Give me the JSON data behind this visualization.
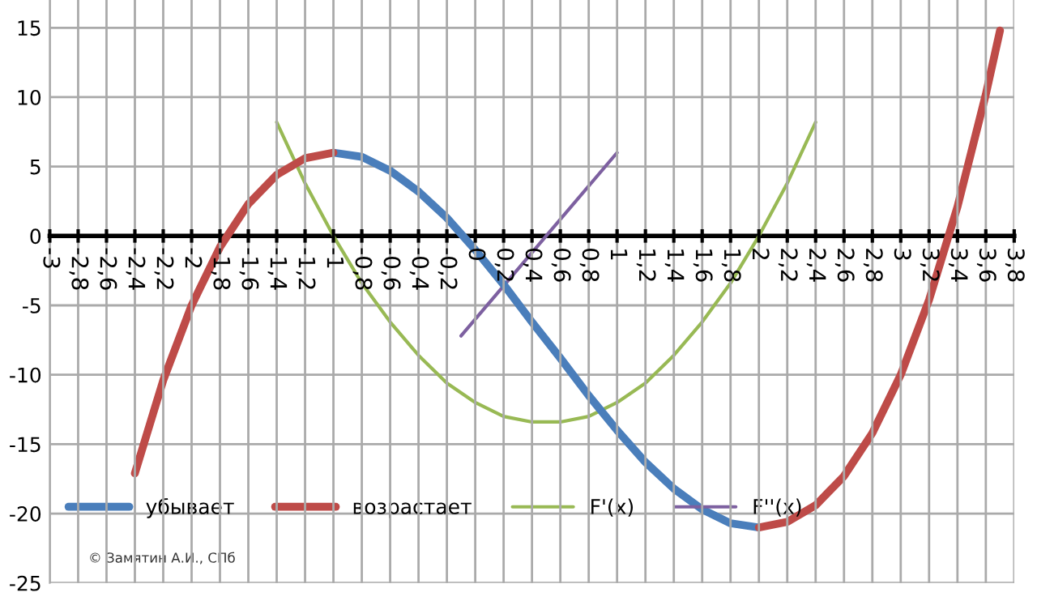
{
  "chart_data": {
    "type": "line",
    "xlim": [
      -3,
      3.8
    ],
    "xticks": [
      {
        "value": -3,
        "label": "-3"
      },
      {
        "value": -2.8,
        "label": "-2,8"
      },
      {
        "value": -2.6,
        "label": "-2,6"
      },
      {
        "value": -2.4,
        "label": "-2,4"
      },
      {
        "value": -2.2,
        "label": "-2,2"
      },
      {
        "value": -2,
        "label": "-2"
      },
      {
        "value": -1.8,
        "label": "-1,8"
      },
      {
        "value": -1.6,
        "label": "-1,6"
      },
      {
        "value": -1.4,
        "label": "-1,4"
      },
      {
        "value": -1.2,
        "label": "-1,2"
      },
      {
        "value": -1,
        "label": "-1"
      },
      {
        "value": -0.8,
        "label": "-0,8"
      },
      {
        "value": -0.6,
        "label": "-0,6"
      },
      {
        "value": -0.4,
        "label": "-0,4"
      },
      {
        "value": -0.2,
        "label": "-0,2"
      },
      {
        "value": 0,
        "label": "0"
      },
      {
        "value": 0.2,
        "label": "0,2"
      },
      {
        "value": 0.4,
        "label": "0,4"
      },
      {
        "value": 0.6,
        "label": "0,6"
      },
      {
        "value": 0.8,
        "label": "0,8"
      },
      {
        "value": 1,
        "label": "1"
      },
      {
        "value": 1.2,
        "label": "1,2"
      },
      {
        "value": 1.4,
        "label": "1,4"
      },
      {
        "value": 1.6,
        "label": "1,6"
      },
      {
        "value": 1.8,
        "label": "1,8"
      },
      {
        "value": 2,
        "label": "2"
      },
      {
        "value": 2.2,
        "label": "2,2"
      },
      {
        "value": 2.4,
        "label": "2,4"
      },
      {
        "value": 2.6,
        "label": "2,6"
      },
      {
        "value": 2.8,
        "label": "2,8"
      },
      {
        "value": 3,
        "label": "3"
      },
      {
        "value": 3.2,
        "label": "3,2"
      },
      {
        "value": 3.4,
        "label": "3,4"
      },
      {
        "value": 3.6,
        "label": "3,6"
      },
      {
        "value": 3.8,
        "label": "3,8"
      }
    ],
    "ylim": [
      -25,
      17
    ],
    "yticks": [
      -25,
      -20,
      -15,
      -10,
      -5,
      0,
      5,
      10,
      15
    ],
    "grid": true,
    "legend": "bottom",
    "marker": "none",
    "series": [
      {
        "name": "убывает",
        "color": "#4a7ebb",
        "x": [
          -1.0,
          -0.8,
          -0.6,
          -0.4,
          -0.2,
          0,
          0.2,
          0.4,
          0.6,
          0.8,
          1.0,
          1.2,
          1.4,
          1.6,
          1.8,
          2.0
        ],
        "values": [
          6,
          5.7,
          4.7,
          3.2,
          1.3,
          -1,
          -3.5,
          -6.2,
          -8.8,
          -11.5,
          -14,
          -16.3,
          -18.2,
          -19.7,
          -20.7,
          -21
        ]
      },
      {
        "name": "возрастает",
        "color": "#be4b48",
        "x": [
          -2.4,
          -2.2,
          -2.0,
          -1.8,
          -1.6,
          -1.4,
          -1.2,
          -1.0,
          0.5,
          2.0,
          2.2,
          2.4,
          2.6,
          2.8,
          3.0,
          3.2,
          3.4,
          3.6,
          3.7
        ],
        "values": [
          -17.1,
          -10.4,
          -5,
          -0.8,
          2.3,
          4.4,
          5.6,
          6,
          null,
          -21,
          -20.6,
          -19.4,
          -17.3,
          -14.2,
          -10,
          -4.6,
          2.1,
          10.2,
          14.8
        ]
      },
      {
        "name": "F'(x)",
        "color": "#98b954",
        "x": [
          -1.4,
          -1.2,
          -1.0,
          -0.8,
          -0.6,
          -0.4,
          -0.2,
          0,
          0.2,
          0.4,
          0.6,
          0.8,
          1.0,
          1.2,
          1.4,
          1.6,
          1.8,
          2.0,
          2.2,
          2.4
        ],
        "values": [
          8.2,
          3.8,
          0,
          -3.4,
          -6.2,
          -8.6,
          -10.6,
          -12,
          -13,
          -13.4,
          -13.4,
          -13,
          -12,
          -10.6,
          -8.6,
          -6.2,
          -3.4,
          0,
          3.8,
          8.2
        ]
      },
      {
        "name": "F''(x)",
        "color": "#7d60a0",
        "x": [
          -0.1,
          1.0
        ],
        "values": [
          -7.2,
          6
        ]
      }
    ],
    "annotations": [
      "© Замятин А.И., СПб"
    ]
  }
}
